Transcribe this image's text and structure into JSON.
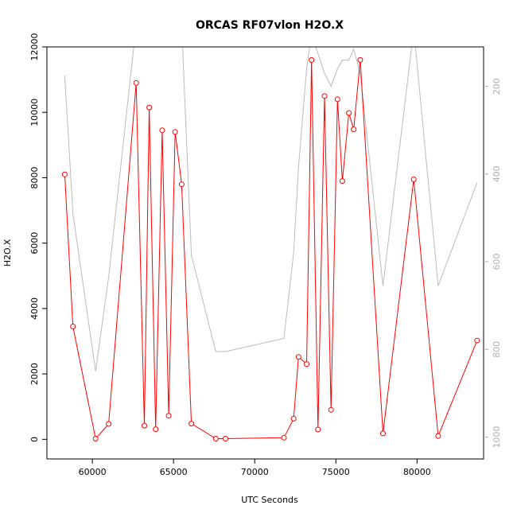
{
  "chart_data": {
    "type": "line",
    "title": "ORCAS RF07vlon H2O.X",
    "xlabel": "UTC Seconds",
    "ylabel": "H2O.X",
    "xlim": [
      57200,
      84100
    ],
    "ylim": [
      -600,
      12000
    ],
    "y2lim": [
      1050,
      110
    ],
    "x_ticks": [
      60000,
      65000,
      70000,
      75000,
      80000
    ],
    "x_tick_labels": [
      "60000",
      "65000",
      "70000",
      "75000",
      "80000"
    ],
    "y_ticks": [
      0,
      2000,
      4000,
      6000,
      8000,
      10000,
      12000
    ],
    "y_tick_labels": [
      "0",
      "2000",
      "4000",
      "6000",
      "8000",
      "10000",
      "12000"
    ],
    "y2_ticks": [
      200,
      400,
      600,
      800,
      1000
    ],
    "y2_tick_labels": [
      "200",
      "400",
      "600",
      "800",
      "1000"
    ],
    "grid": false,
    "series": [
      {
        "axis": "left",
        "color": "#ff0000",
        "marker": "open-circle",
        "x": [
          58300,
          58800,
          60200,
          61000,
          62700,
          63200,
          63500,
          63900,
          64300,
          64700,
          65100,
          65500,
          66100,
          67600,
          68200,
          71800,
          72400,
          72700,
          73200,
          73500,
          73900,
          74300,
          74700,
          75100,
          75400,
          75800,
          76100,
          76500,
          77900,
          79800,
          81300,
          83700
        ],
        "y": [
          8100,
          3450,
          20,
          470,
          10900,
          420,
          10150,
          310,
          9450,
          720,
          9400,
          7800,
          480,
          20,
          20,
          50,
          630,
          2520,
          2300,
          11600,
          300,
          10500,
          900,
          10400,
          7900,
          9980,
          9480,
          11600,
          180,
          7950,
          100,
          3020
        ]
      },
      {
        "axis": "right",
        "color": "#bbbbbb",
        "marker": "none",
        "x": [
          58300,
          58800,
          60200,
          61000,
          62700,
          63200,
          63500,
          63900,
          64300,
          64700,
          65100,
          65500,
          66100,
          67600,
          68200,
          71800,
          72400,
          72700,
          73200,
          73500,
          73900,
          74300,
          74700,
          75100,
          75400,
          75800,
          76100,
          76500,
          77900,
          79800,
          81300,
          83700
        ],
        "y": [
          175,
          490,
          850,
          635,
          60,
          20,
          60,
          20,
          60,
          20,
          20,
          60,
          585,
          805,
          805,
          775,
          580,
          385,
          160,
          80,
          125,
          170,
          200,
          160,
          140,
          140,
          115,
          170,
          655,
          70,
          655,
          420
        ]
      }
    ]
  }
}
